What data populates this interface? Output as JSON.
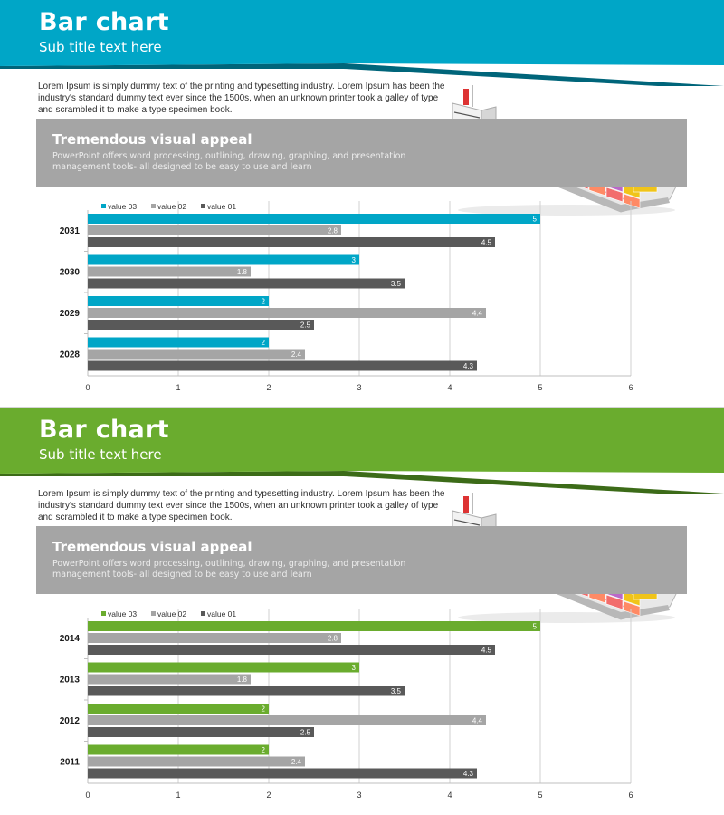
{
  "slides": [
    {
      "title": "Bar chart",
      "subtitle": "Sub title text here",
      "body_text": "Lorem Ipsum is simply dummy text of the printing and typesetting industry. Lorem Ipsum has been the industry's standard dummy text ever since the 1500s, when an unknown printer took a galley of type and scrambled it to make a type specimen book.",
      "band_heading": "Tremendous visual appeal",
      "band_text": "PowerPoint offers word processing, outlining, drawing, graphing, and presentation management tools- all designed to be easy to use and learn",
      "accent_color": "#00a6c7",
      "accent_dark": "#00657a"
    },
    {
      "title": "Bar chart",
      "subtitle": "Sub title text here",
      "body_text": "Lorem Ipsum is simply dummy text of the printing and typesetting industry. Lorem Ipsum has been the industry's standard dummy text ever since the 1500s, when an unknown printer took a galley of type and scrambled it to make a type specimen book.",
      "band_heading": "Tremendous visual appeal",
      "band_text": "PowerPoint offers word processing, outlining, drawing, graphing, and presentation management tools- all designed to be easy to use and learn",
      "accent_color": "#6aac2e",
      "accent_dark": "#3c6b18"
    }
  ],
  "chart_data": [
    {
      "type": "bar",
      "orientation": "horizontal",
      "categories": [
        "2031",
        "2030",
        "2029",
        "2028"
      ],
      "series": [
        {
          "name": "value 03",
          "color": "#00a6c7",
          "values": [
            5,
            3,
            2,
            2
          ]
        },
        {
          "name": "value 02",
          "color": "#a5a5a5",
          "values": [
            2.8,
            1.8,
            4.4,
            2.4
          ]
        },
        {
          "name": "value 01",
          "color": "#595959",
          "values": [
            4.5,
            3.5,
            2.5,
            4.3
          ]
        }
      ],
      "xlim": [
        0,
        6
      ],
      "x_ticks": [
        "0",
        "1",
        "2",
        "3",
        "4",
        "5",
        "6"
      ],
      "legend": "top-left",
      "grid": true
    },
    {
      "type": "bar",
      "orientation": "horizontal",
      "categories": [
        "2014",
        "2013",
        "2012",
        "2011"
      ],
      "series": [
        {
          "name": "value 03",
          "color": "#6aac2e",
          "values": [
            5,
            3,
            2,
            2
          ]
        },
        {
          "name": "value 02",
          "color": "#a5a5a5",
          "values": [
            2.8,
            1.8,
            4.4,
            2.4
          ]
        },
        {
          "name": "value 01",
          "color": "#595959",
          "values": [
            4.5,
            3.5,
            2.5,
            4.3
          ]
        }
      ],
      "xlim": [
        0,
        6
      ],
      "x_ticks": [
        "0",
        "1",
        "2",
        "3",
        "4",
        "5",
        "6"
      ],
      "legend": "top-left",
      "grid": true
    }
  ]
}
